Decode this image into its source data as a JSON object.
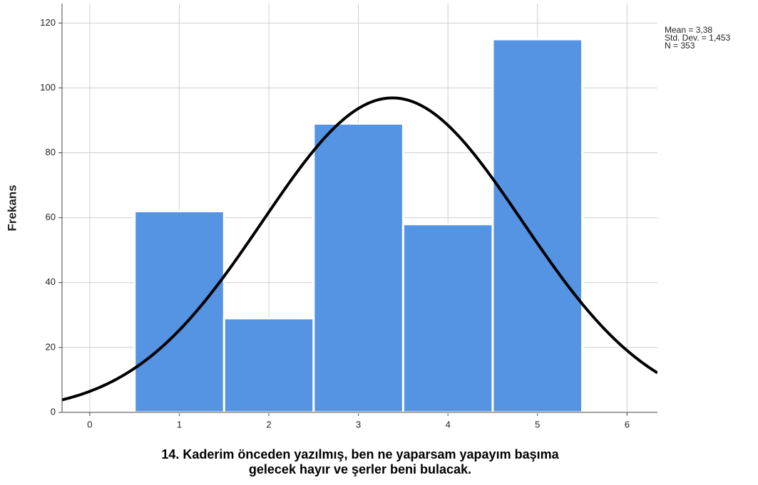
{
  "chart_data": {
    "type": "histogram",
    "ylabel": "Frekans",
    "xlabel": [
      "14. Kaderim önceden yazılmış, ben ne yaparsam yapayım başıma",
      "gelecek hayır ve şerler beni bulacak."
    ],
    "bins": [
      0.5,
      1.5,
      2.5,
      3.5,
      4.5,
      5.5
    ],
    "values": [
      62,
      29,
      89,
      58,
      115
    ],
    "color": "#5593e3",
    "xlim": [
      -0.31,
      6.34
    ],
    "xticks": [
      0,
      1,
      2,
      3,
      4,
      5,
      6
    ],
    "ylim": [
      0,
      126
    ],
    "yticks": [
      0,
      20,
      40,
      60,
      80,
      100,
      120
    ],
    "grid": true,
    "normal_curve": {
      "mean": 3.38,
      "std": 1.453,
      "n": 353,
      "color": "#000000"
    },
    "annotations": [
      "Mean = 3,38",
      "Std. Dev. = 1,453",
      "N = 353"
    ]
  }
}
